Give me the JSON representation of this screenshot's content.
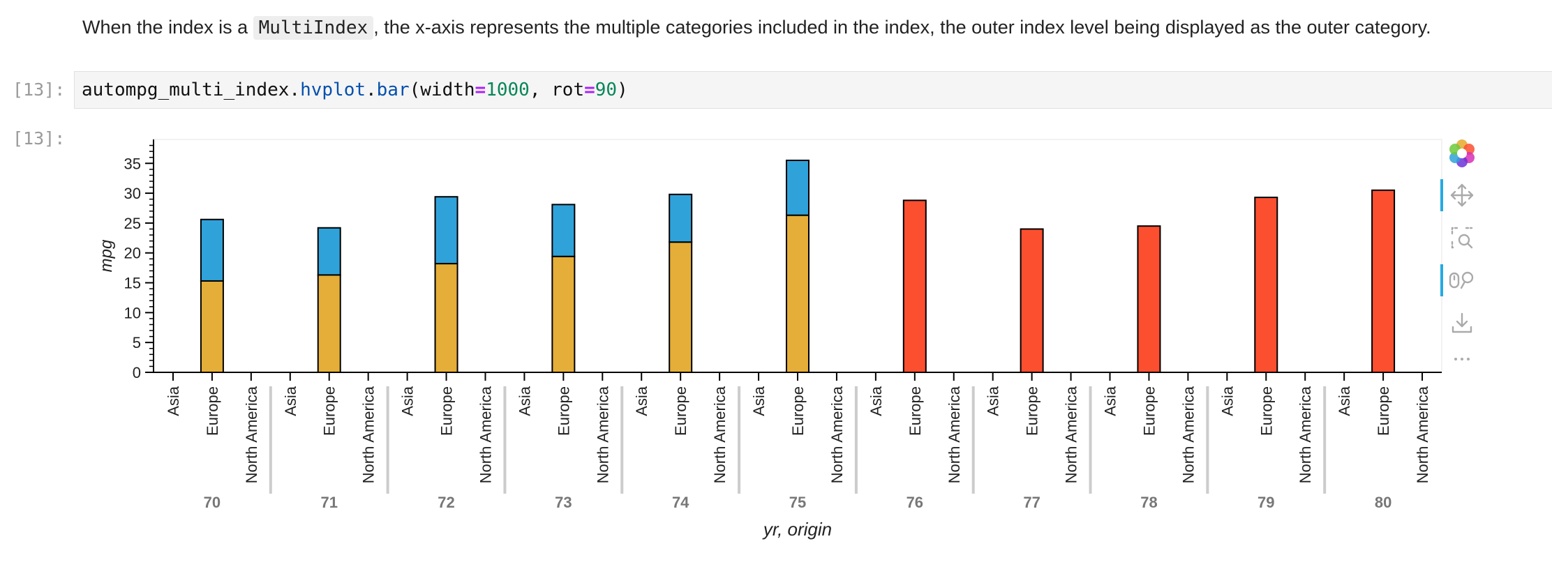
{
  "markdown": {
    "before": "When the index is a ",
    "code": "MultiIndex",
    "after": ", the x-axis represents the multiple categories included in the index, the outer index level being displayed as the outer category."
  },
  "cell": {
    "in_prompt": "[13]:",
    "out_prompt": "[13]:",
    "code": {
      "obj": "autompg_multi_index",
      "dot1": ".",
      "attr1": "hvplot",
      "dot2": ".",
      "attr2": "bar",
      "open": "(width",
      "eq1": "=",
      "num1": "1000",
      "mid": ", rot",
      "eq2": "=",
      "num2": "90",
      "close": ")"
    }
  },
  "toolbar": {
    "tools": [
      {
        "name": "bokeh-logo-icon",
        "active": false
      },
      {
        "name": "pan-icon",
        "active": true
      },
      {
        "name": "box-zoom-icon",
        "active": false
      },
      {
        "name": "wheel-zoom-icon",
        "active": true
      },
      {
        "name": "save-icon",
        "active": false
      },
      {
        "name": "more-icon",
        "active": false
      }
    ]
  },
  "chart_data": {
    "type": "bar",
    "xlabel": "yr, origin",
    "ylabel": "mpg",
    "ylim": [
      0,
      39
    ],
    "yticks": [
      0,
      5,
      10,
      15,
      20,
      25,
      30,
      35
    ],
    "inner_categories": [
      "Asia",
      "Europe",
      "North America"
    ],
    "outer_categories": [
      "70",
      "71",
      "72",
      "73",
      "74",
      "75",
      "76",
      "77",
      "78",
      "79",
      "80"
    ],
    "colors": {
      "top": "#30a2da",
      "bottom": "#e5ae38",
      "single": "#fc4f30",
      "outline": "#000000"
    },
    "bars": [
      {
        "yr": "70",
        "origin": "Europe",
        "values": [
          15.3,
          25.6
        ]
      },
      {
        "yr": "71",
        "origin": "Europe",
        "values": [
          16.3,
          24.2
        ]
      },
      {
        "yr": "72",
        "origin": "Europe",
        "values": [
          18.2,
          29.4
        ]
      },
      {
        "yr": "73",
        "origin": "Europe",
        "values": [
          19.4,
          28.1
        ]
      },
      {
        "yr": "74",
        "origin": "Europe",
        "values": [
          21.8,
          29.8
        ]
      },
      {
        "yr": "75",
        "origin": "Europe",
        "values": [
          26.3,
          35.5
        ]
      },
      {
        "yr": "76",
        "origin": "Europe",
        "values": [
          28.8
        ]
      },
      {
        "yr": "77",
        "origin": "Europe",
        "values": [
          24.0
        ]
      },
      {
        "yr": "78",
        "origin": "Europe",
        "values": [
          24.5
        ]
      },
      {
        "yr": "79",
        "origin": "Europe",
        "values": [
          29.3
        ]
      },
      {
        "yr": "80",
        "origin": "Europe",
        "values": [
          30.5
        ]
      }
    ]
  }
}
